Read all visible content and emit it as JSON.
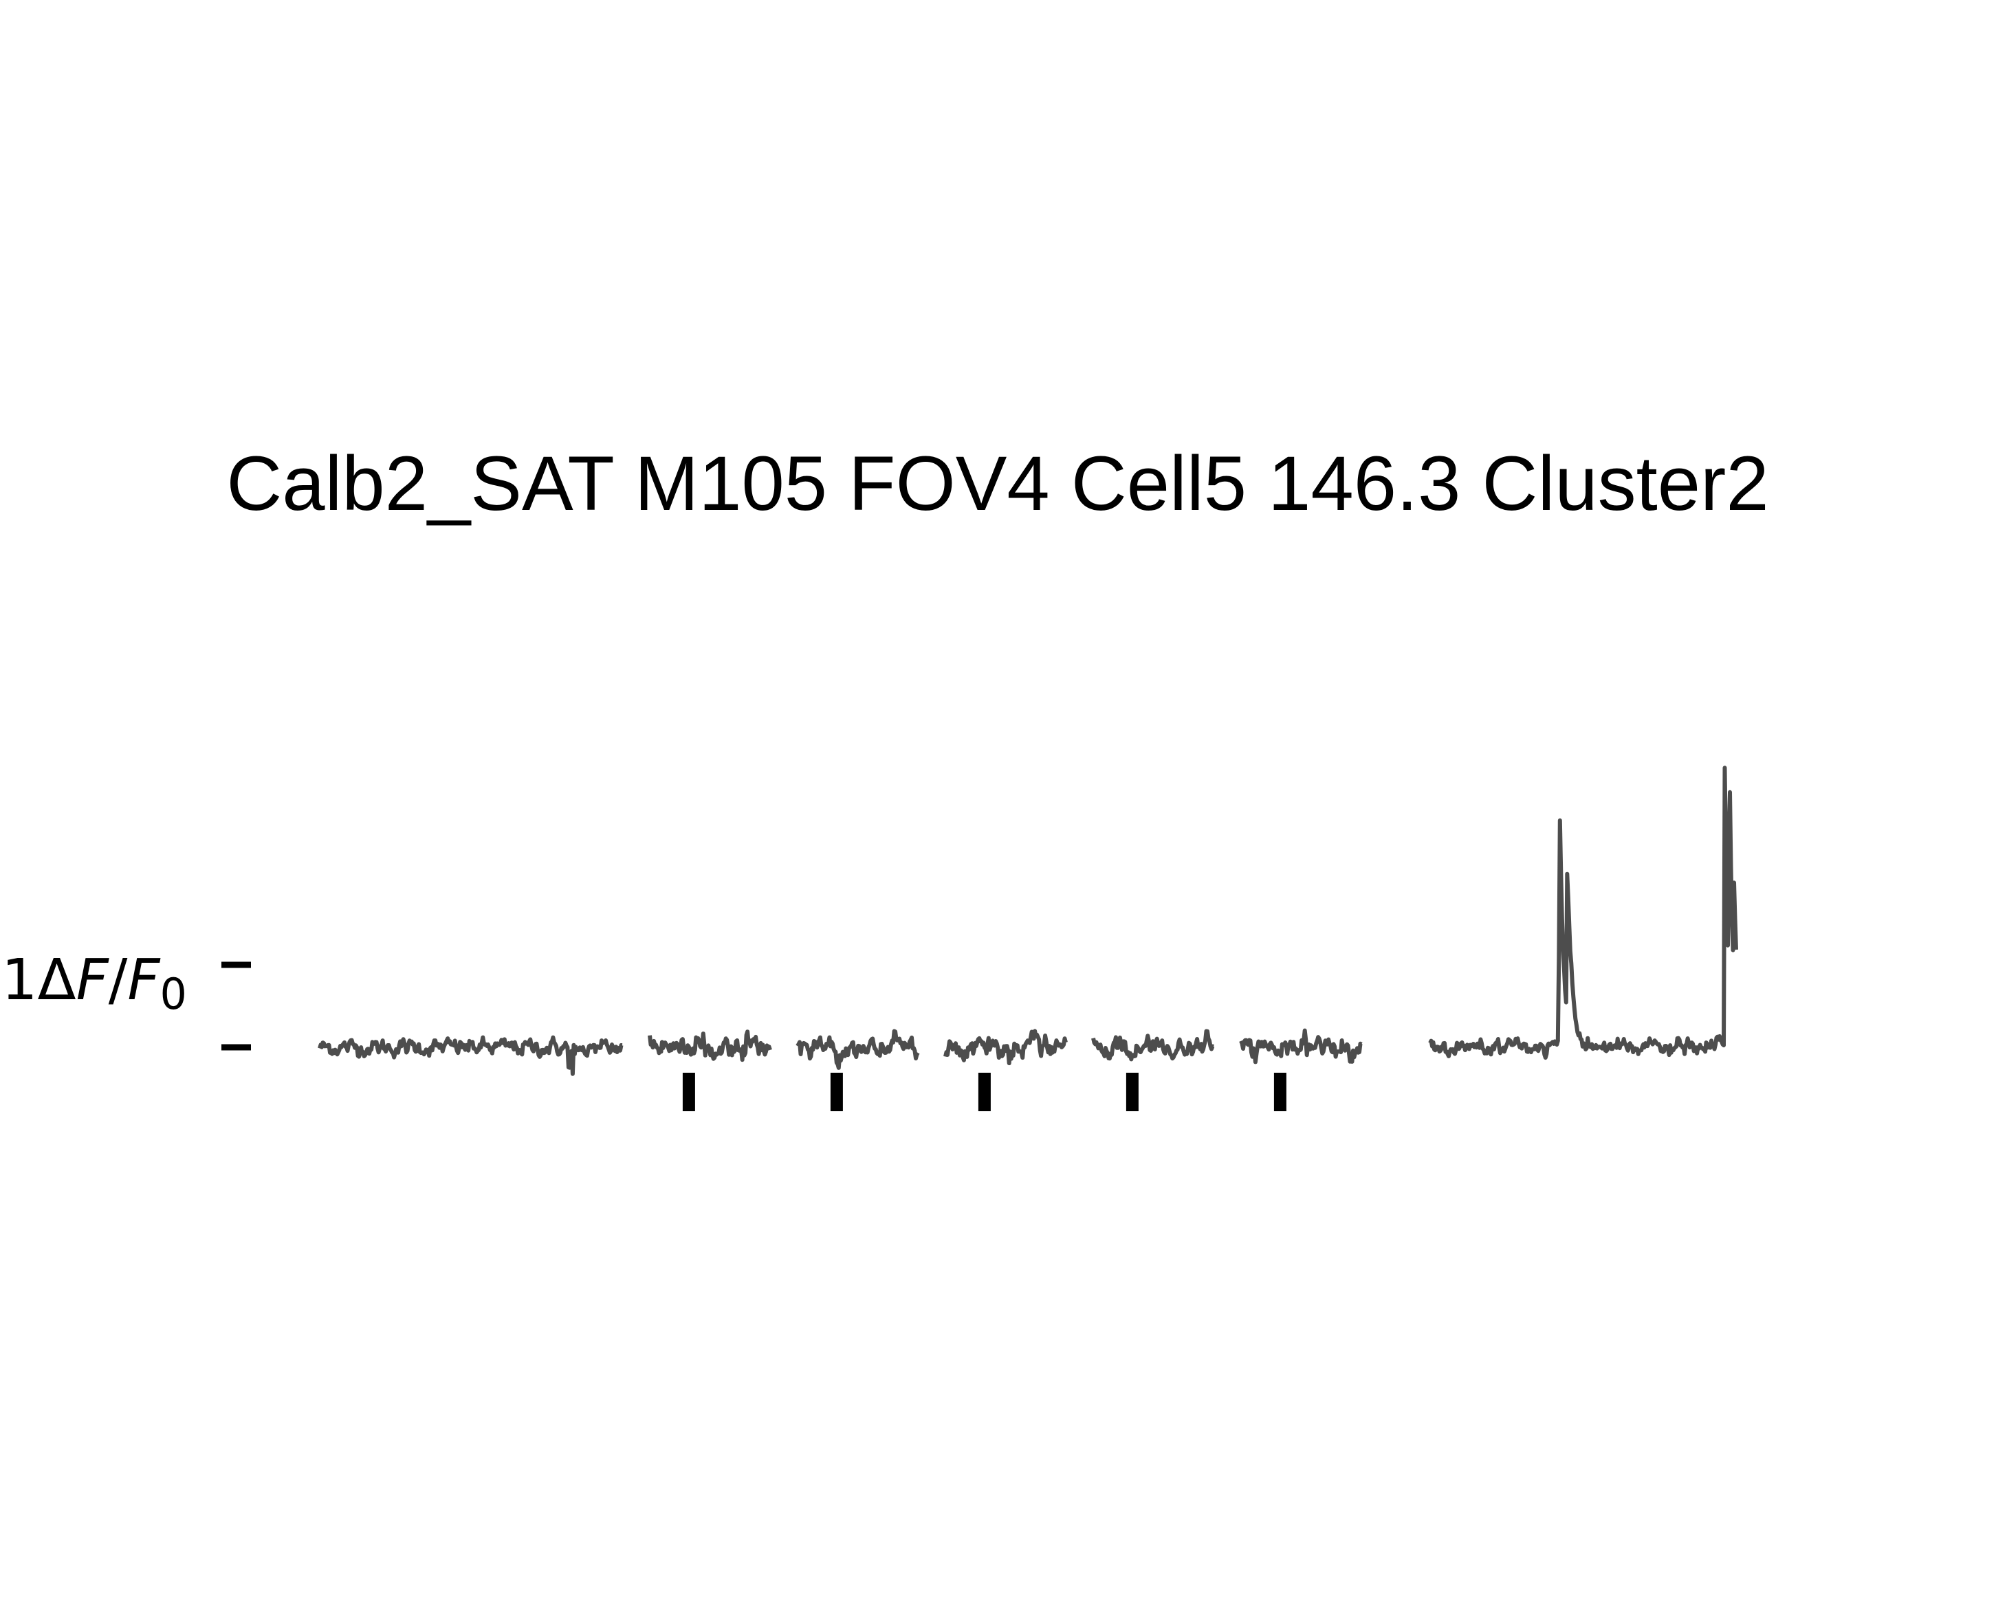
{
  "chart_data": {
    "type": "line",
    "title": "Calb2_SAT M105 FOV4 Cell5 146.3 Cluster2",
    "ylabel": "1ΔF/F0",
    "ylabel_parts": {
      "prefix": "1",
      "delta": "Δ",
      "F": "F",
      "slash": "/",
      "F0": "F",
      "sub": "0"
    },
    "scale_bar": {
      "value": 1,
      "unit": "ΔF/F0"
    },
    "line_color": "#4d4d4d",
    "stim_marker_color": "#000000",
    "ylim": [
      -0.6,
      4.8
    ],
    "segments": [
      {
        "name": "",
        "x": [
          0,
          10
        ],
        "noise": 0.04,
        "artifact": {
          "x": 8.3,
          "amp": 0.25
        },
        "events": []
      },
      {
        "name": "",
        "x": [
          0,
          4
        ],
        "noise": 0.05,
        "events": [],
        "stimulus": 1.3
      },
      {
        "name": "",
        "x": [
          0,
          4
        ],
        "noise": 0.05,
        "events": [],
        "stimulus": 1.3
      },
      {
        "name": "",
        "x": [
          0,
          4
        ],
        "noise": 0.05,
        "events": [],
        "stimulus": 1.3
      },
      {
        "name": "",
        "x": [
          0,
          4
        ],
        "noise": 0.05,
        "events": [],
        "stimulus": 1.3
      },
      {
        "name": "",
        "x": [
          0,
          4
        ],
        "noise": 0.05,
        "events": [],
        "stimulus": 1.3
      },
      {
        "name": "",
        "x": [
          0,
          10
        ],
        "noise": 0.04,
        "events": [
          {
            "x": 4.2,
            "peak": 3.95,
            "decay": 0.12
          },
          {
            "x": 4.45,
            "peak": 2.2,
            "decay": 0.15
          },
          {
            "x": 9.6,
            "peak": 4.6,
            "decay": 0.1
          },
          {
            "x": 9.75,
            "peak": 3.9,
            "decay": 0.1
          },
          {
            "x": 9.9,
            "peak": 1.5,
            "decay": 0.15
          },
          {
            "x": 10.3,
            "peak": 0.6,
            "decay": 0.2
          }
        ]
      }
    ]
  }
}
